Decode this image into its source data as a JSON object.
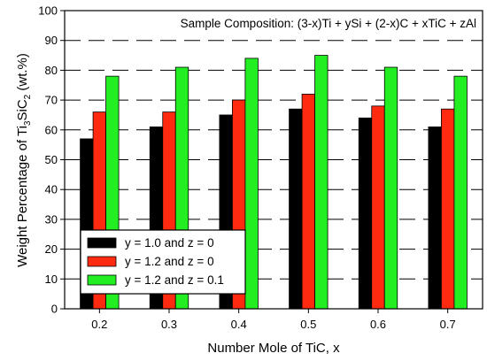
{
  "chart_data": {
    "type": "bar",
    "categories": [
      "0.2",
      "0.3",
      "0.4",
      "0.5",
      "0.6",
      "0.7"
    ],
    "series": [
      {
        "name": "y = 1.0 and z = 0",
        "values": [
          57,
          61,
          65,
          67,
          64,
          61
        ],
        "color": "#000000"
      },
      {
        "name": "y = 1.2 and z = 0",
        "values": [
          66,
          66,
          70,
          72,
          68,
          67
        ],
        "color": "#ff2a10"
      },
      {
        "name": "y = 1.2 and z = 0.1",
        "values": [
          78,
          81,
          84,
          85,
          81,
          78
        ],
        "color": "#22ee22"
      }
    ],
    "xlabel": "Number Mole of TiC, x",
    "ylabel_main": "Weight Percentage of Ti",
    "ylabel_sub1": "3",
    "ylabel_mid": "SiC",
    "ylabel_sub2": "2",
    "ylabel_tail": " (wt.%)",
    "annotation": "Sample Composition: (3-x)Ti + ySi + (2-x)C + xTiC + zAl",
    "ylim": [
      0,
      100
    ],
    "yticks": [
      "0",
      "10",
      "20",
      "30",
      "40",
      "50",
      "60",
      "70",
      "80",
      "90",
      "100"
    ],
    "grid": "dashed-horizontal",
    "legend_position": "bottom-left"
  }
}
